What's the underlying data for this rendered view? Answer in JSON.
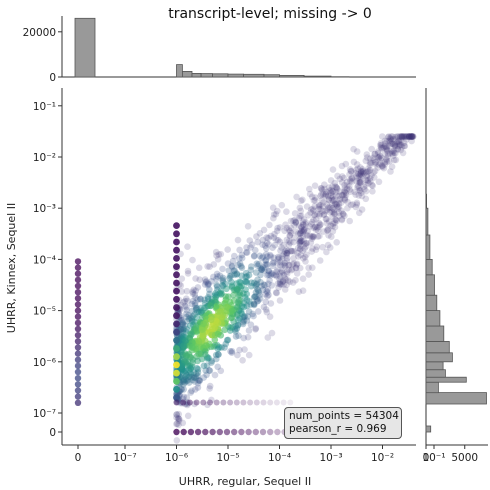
{
  "title": "transcript-level; missing -> 0",
  "annotation": {
    "num_points": "num_points = 54304",
    "pearson_r": "pearson_r = 0.969"
  },
  "chart_data": {
    "type": "scatter",
    "title": "transcript-level; missing -> 0",
    "xlabel": "UHRR, regular, Sequel II",
    "ylabel": "UHRR, Kinnex, Sequel II",
    "x_ticks": [
      "0",
      "10⁻⁷",
      "10⁻⁶",
      "10⁻⁵",
      "10⁻⁴",
      "10⁻³",
      "10⁻²",
      "10⁻¹"
    ],
    "y_ticks": [
      "0",
      "10⁻⁷",
      "10⁻⁶",
      "10⁻⁵",
      "10⁻⁴",
      "10⁻³",
      "10⁻²",
      "10⁻¹"
    ],
    "x_scale": "symlog",
    "y_scale": "symlog",
    "marginal_top": {
      "type": "histogram",
      "y_ticks": [
        "0",
        "20000"
      ],
      "ylim": [
        0,
        27000
      ],
      "bins": [
        {
          "x": "0",
          "count": 26000
        },
        {
          "x": 1e-06,
          "count": 5500
        },
        {
          "x": 1.3e-06,
          "count": 2500
        },
        {
          "x": 2e-06,
          "count": 1600
        },
        {
          "x": 3e-06,
          "count": 1500
        },
        {
          "x": 5e-06,
          "count": 1400
        },
        {
          "x": 1e-05,
          "count": 1300
        },
        {
          "x": 2e-05,
          "count": 1200
        },
        {
          "x": 5e-05,
          "count": 1000
        },
        {
          "x": 0.0001,
          "count": 700
        },
        {
          "x": 0.0003,
          "count": 400
        },
        {
          "x": 0.001,
          "count": 150
        }
      ]
    },
    "marginal_right": {
      "type": "histogram",
      "x_ticks": [
        "0",
        "5000"
      ],
      "xlim": [
        0,
        8000
      ],
      "bins": [
        {
          "y": "0",
          "count": 600
        },
        {
          "y": 1.5e-07,
          "count": 7800
        },
        {
          "y": 2.5e-07,
          "count": 1600
        },
        {
          "y": 4e-07,
          "count": 5200
        },
        {
          "y": 5e-07,
          "count": 2500
        },
        {
          "y": 7e-07,
          "count": 2200
        },
        {
          "y": 1e-06,
          "count": 3400
        },
        {
          "y": 1.5e-06,
          "count": 3000
        },
        {
          "y": 2.5e-06,
          "count": 2300
        },
        {
          "y": 5e-06,
          "count": 1800
        },
        {
          "y": 1e-05,
          "count": 1400
        },
        {
          "y": 2e-05,
          "count": 1100
        },
        {
          "y": 5e-05,
          "count": 800
        },
        {
          "y": 0.0001,
          "count": 500
        },
        {
          "y": 0.0003,
          "count": 250
        },
        {
          "y": 0.001,
          "count": 80
        }
      ]
    },
    "colormap": "viridis",
    "colors": {
      "bar": "#999999",
      "bar_edge": "#555555",
      "low": "#440154",
      "mid": "#21918c",
      "high": "#fde725"
    }
  }
}
